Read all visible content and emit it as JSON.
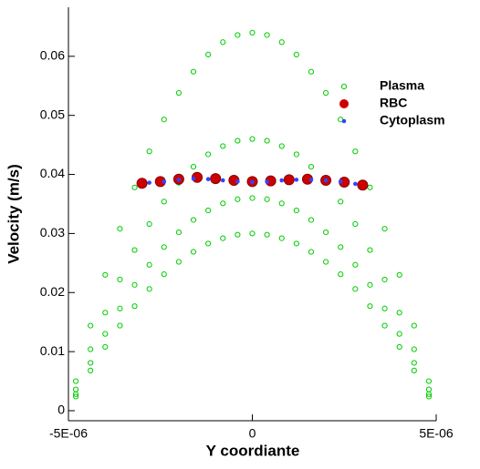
{
  "chart_data": {
    "type": "scatter",
    "xlabel": "Y coordiante",
    "ylabel": "Velocity (m/s)",
    "xlim": [
      -5e-06,
      5e-06
    ],
    "ylim": [
      -0.0017,
      0.0683
    ],
    "xticks": [
      {
        "value": -5e-06,
        "label": "-5E-06"
      },
      0,
      {
        "value": 5e-06,
        "label": "5E-06"
      }
    ],
    "yticks": [
      0,
      0.01,
      0.02,
      0.03,
      0.04,
      0.05,
      0.06
    ],
    "series": [
      {
        "name": "Plasma",
        "color": "#00cc00",
        "x": [
          -4.8e-06,
          -4.8e-06,
          -4.8e-06,
          -4.8e-06,
          -4.4e-06,
          -4.4e-06,
          -4.4e-06,
          -4.4e-06,
          -4e-06,
          -4e-06,
          -4e-06,
          -4e-06,
          -3.6e-06,
          -3.6e-06,
          -3.6e-06,
          -3.6e-06,
          -3.2e-06,
          -3.2e-06,
          -3.2e-06,
          -3.2e-06,
          -2.8e-06,
          -2.8e-06,
          -2.8e-06,
          -2.8e-06,
          -2.4e-06,
          -2.4e-06,
          -2.4e-06,
          -2.4e-06,
          -2e-06,
          -2e-06,
          -2e-06,
          -2e-06,
          -1.6e-06,
          -1.6e-06,
          -1.6e-06,
          -1.6e-06,
          -1.2e-06,
          -1.2e-06,
          -1.2e-06,
          -1.2e-06,
          -8e-07,
          -8e-07,
          -8e-07,
          -8e-07,
          -4e-07,
          -4e-07,
          -4e-07,
          -4e-07,
          0,
          0,
          0,
          0,
          4e-07,
          4e-07,
          4e-07,
          4e-07,
          8e-07,
          8e-07,
          8e-07,
          8e-07,
          1.2e-06,
          1.2e-06,
          1.2e-06,
          1.2e-06,
          1.6e-06,
          1.6e-06,
          1.6e-06,
          1.6e-06,
          2e-06,
          2e-06,
          2e-06,
          2e-06,
          2.4e-06,
          2.4e-06,
          2.4e-06,
          2.4e-06,
          2.8e-06,
          2.8e-06,
          2.8e-06,
          2.8e-06,
          3.2e-06,
          3.2e-06,
          3.2e-06,
          3.2e-06,
          3.6e-06,
          3.6e-06,
          3.6e-06,
          3.6e-06,
          4e-06,
          4e-06,
          4e-06,
          4e-06,
          4.4e-06,
          4.4e-06,
          4.4e-06,
          4.4e-06,
          4.8e-06,
          4.8e-06,
          4.8e-06,
          4.8e-06
        ],
        "y": [
          0.0024,
          0.0028,
          0.0036,
          0.005,
          0.0068,
          0.0081,
          0.0104,
          0.0144,
          0.0108,
          0.013,
          0.0166,
          0.023,
          0.0144,
          0.0173,
          0.0222,
          0.0308,
          0.0177,
          0.0213,
          0.0272,
          0.0378,
          0.0206,
          0.0247,
          0.0316,
          0.0439,
          0.0231,
          0.0277,
          0.0354,
          0.0493,
          0.0252,
          0.0302,
          0.0386,
          0.0538,
          0.0269,
          0.0323,
          0.0413,
          0.0574,
          0.0283,
          0.0339,
          0.0434,
          0.0603,
          0.0292,
          0.0351,
          0.0448,
          0.0624,
          0.0298,
          0.0358,
          0.0457,
          0.0636,
          0.03,
          0.036,
          0.046,
          0.064,
          0.0298,
          0.0358,
          0.0457,
          0.0636,
          0.0292,
          0.0351,
          0.0448,
          0.0624,
          0.0283,
          0.0339,
          0.0434,
          0.0603,
          0.0269,
          0.0323,
          0.0413,
          0.0574,
          0.0252,
          0.0302,
          0.0386,
          0.0538,
          0.0231,
          0.0277,
          0.0354,
          0.0493,
          0.0206,
          0.0247,
          0.0316,
          0.0439,
          0.0177,
          0.0213,
          0.0272,
          0.0378,
          0.0144,
          0.0173,
          0.0222,
          0.0308,
          0.0108,
          0.013,
          0.0166,
          0.023,
          0.0068,
          0.0081,
          0.0104,
          0.0144,
          0.0024,
          0.0028,
          0.0036,
          0.005
        ]
      },
      {
        "name": "RBC",
        "color": "#cc0000",
        "x": [
          -3e-06,
          -2.5e-06,
          -2e-06,
          -1.5e-06,
          -1e-06,
          -5e-07,
          0,
          5e-07,
          1e-06,
          1.5e-06,
          2e-06,
          2.5e-06,
          3e-06
        ],
        "y": [
          0.0385,
          0.0388,
          0.0392,
          0.0395,
          0.0393,
          0.039,
          0.0388,
          0.0389,
          0.0391,
          0.0392,
          0.039,
          0.0387,
          0.0382
        ]
      },
      {
        "name": "Cytoplasm",
        "color": "#3344ff",
        "x": [
          -2.8e-06,
          -2.4e-06,
          -2e-06,
          -1.6e-06,
          -1.2e-06,
          -8e-07,
          -4e-07,
          0,
          4e-07,
          8e-07,
          1.2e-06,
          1.6e-06,
          2e-06,
          2.4e-06,
          2.8e-06
        ],
        "y": [
          0.0386,
          0.0388,
          0.0391,
          0.0393,
          0.0392,
          0.039,
          0.0388,
          0.0387,
          0.0388,
          0.039,
          0.0391,
          0.0391,
          0.039,
          0.0388,
          0.0384
        ]
      }
    ]
  }
}
